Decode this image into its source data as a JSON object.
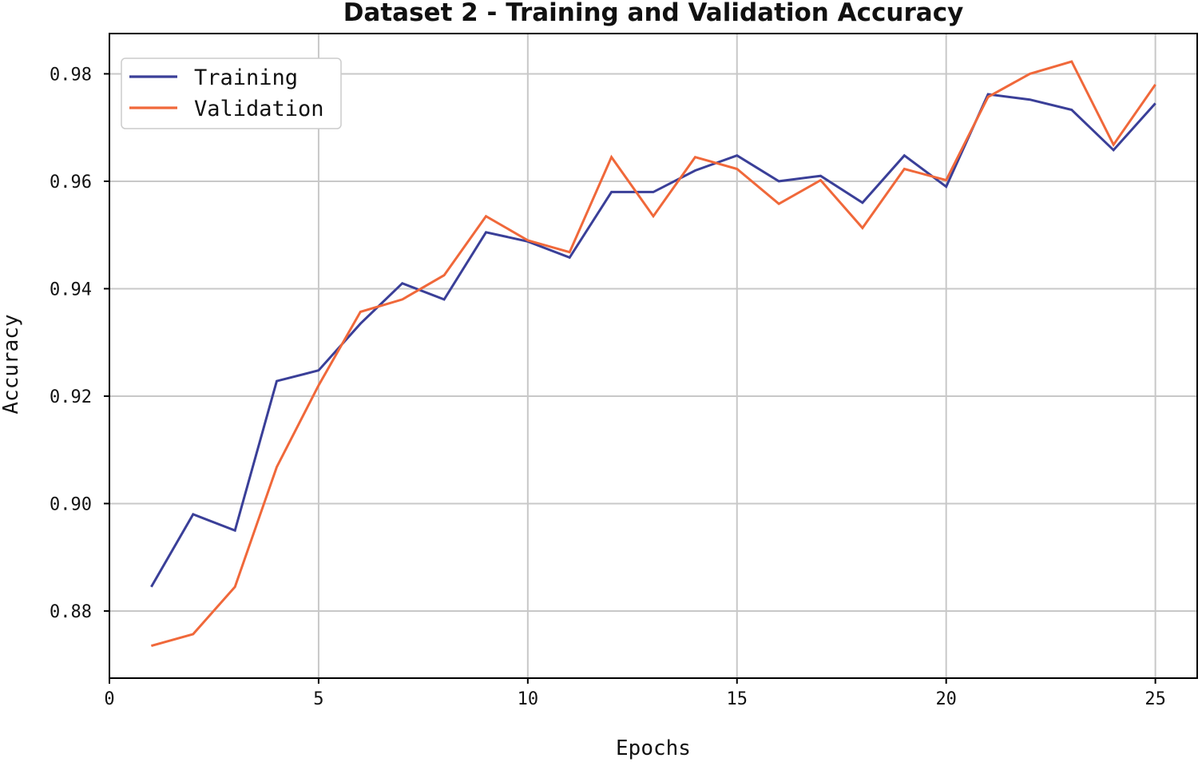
{
  "chart_data": {
    "type": "line",
    "title": "Dataset 2 - Training and Validation Accuracy",
    "xlabel": "Epochs",
    "ylabel": "Accuracy",
    "xlim": [
      0,
      26
    ],
    "ylim": [
      0.8675,
      0.9875
    ],
    "xticks": [
      0,
      5,
      10,
      15,
      20,
      25
    ],
    "yticks": [
      0.88,
      0.9,
      0.92,
      0.94,
      0.96,
      0.98
    ],
    "xtick_labels": [
      "0",
      "5",
      "10",
      "15",
      "20",
      "25"
    ],
    "ytick_labels": [
      "0.88",
      "0.90",
      "0.92",
      "0.94",
      "0.96",
      "0.98"
    ],
    "grid": true,
    "legend_position": "top-left",
    "x": [
      1,
      2,
      3,
      4,
      5,
      6,
      7,
      8,
      9,
      10,
      11,
      12,
      13,
      14,
      15,
      16,
      17,
      18,
      19,
      20,
      21,
      22,
      23,
      24,
      25
    ],
    "series": [
      {
        "name": "Training",
        "color": "#3a3f98",
        "values": [
          0.8845,
          0.898,
          0.895,
          0.9228,
          0.9248,
          0.9335,
          0.941,
          0.938,
          0.9505,
          0.9488,
          0.9458,
          0.958,
          0.958,
          0.962,
          0.9648,
          0.96,
          0.961,
          0.956,
          0.9648,
          0.959,
          0.9762,
          0.9752,
          0.9733,
          0.9658,
          0.9745
        ]
      },
      {
        "name": "Validation",
        "color": "#f0683a",
        "values": [
          0.8735,
          0.8757,
          0.8845,
          0.9068,
          0.922,
          0.9357,
          0.938,
          0.9425,
          0.9535,
          0.949,
          0.9468,
          0.9645,
          0.9535,
          0.9645,
          0.9623,
          0.9558,
          0.9602,
          0.9513,
          0.9623,
          0.9602,
          0.9757,
          0.98,
          0.9823,
          0.9668,
          0.978
        ]
      }
    ]
  }
}
